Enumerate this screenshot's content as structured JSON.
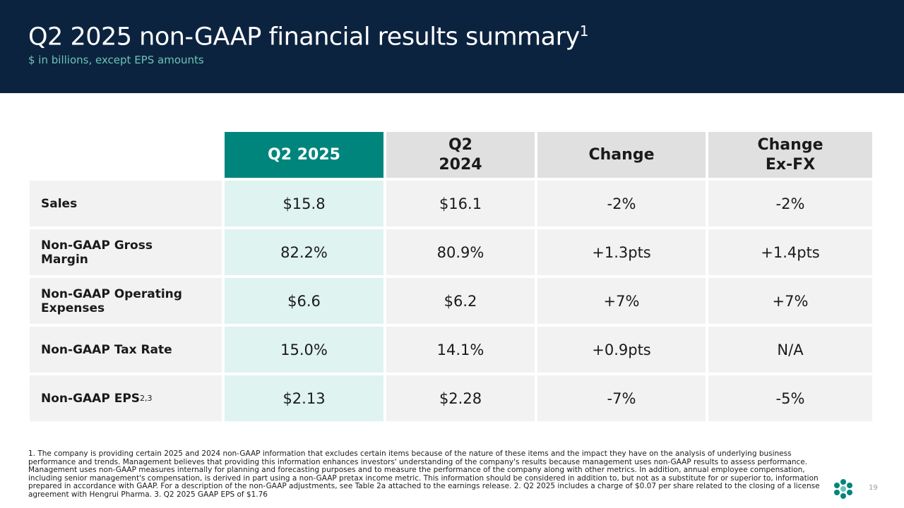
{
  "header": {
    "title": "Q2 2025 non-GAAP financial results summary",
    "title_sup": "1",
    "subtitle": "$ in billions, except EPS amounts"
  },
  "table": {
    "columns": [
      "Q2 2025",
      "Q2 2024",
      "Change",
      "Change Ex-FX"
    ],
    "rows": [
      {
        "label": "Sales",
        "cells": [
          "$15.8",
          "$16.1",
          "-2%",
          "-2%"
        ]
      },
      {
        "label": "Non-GAAP Gross Margin",
        "cells": [
          "82.2%",
          "80.9%",
          "+1.3pts",
          "+1.4pts"
        ]
      },
      {
        "label": "Non-GAAP Operating Expenses",
        "cells": [
          "$6.6",
          "$6.2",
          "+7%",
          "+7%"
        ]
      },
      {
        "label": "Non-GAAP Tax Rate",
        "cells": [
          "15.0%",
          "14.1%",
          "+0.9pts",
          "N/A"
        ]
      },
      {
        "label": "Non-GAAP EPS",
        "sup": "2,3",
        "cells": [
          "$2.13",
          "$2.28",
          "-7%",
          "-5%"
        ]
      }
    ]
  },
  "footnote": "1. The company is providing certain 2025 and 2024 non-GAAP information that excludes certain items because of the nature of these items and the impact they have on the analysis of underlying business performance and trends. Management believes that providing this information enhances investors' understanding of the company's results because management uses non-GAAP results to assess performance. Management uses non-GAAP measures internally for planning and forecasting purposes and to measure the performance of the company along with other metrics. In addition, annual employee compensation, including senior management's compensation, is derived in part using a non-GAAP pretax income metric. This information should be considered in addition to, but not as a substitute for or superior to, information prepared in accordance with GAAP. For a description of the non-GAAP adjustments, see Table 2a attached to the earnings release.  2. Q2 2025 includes a charge of $0.07 per share related to the closing of a license agreement with Hengrui Pharma.  3. Q2 2025 GAAP EPS of $1.76",
  "page_number": "19"
}
